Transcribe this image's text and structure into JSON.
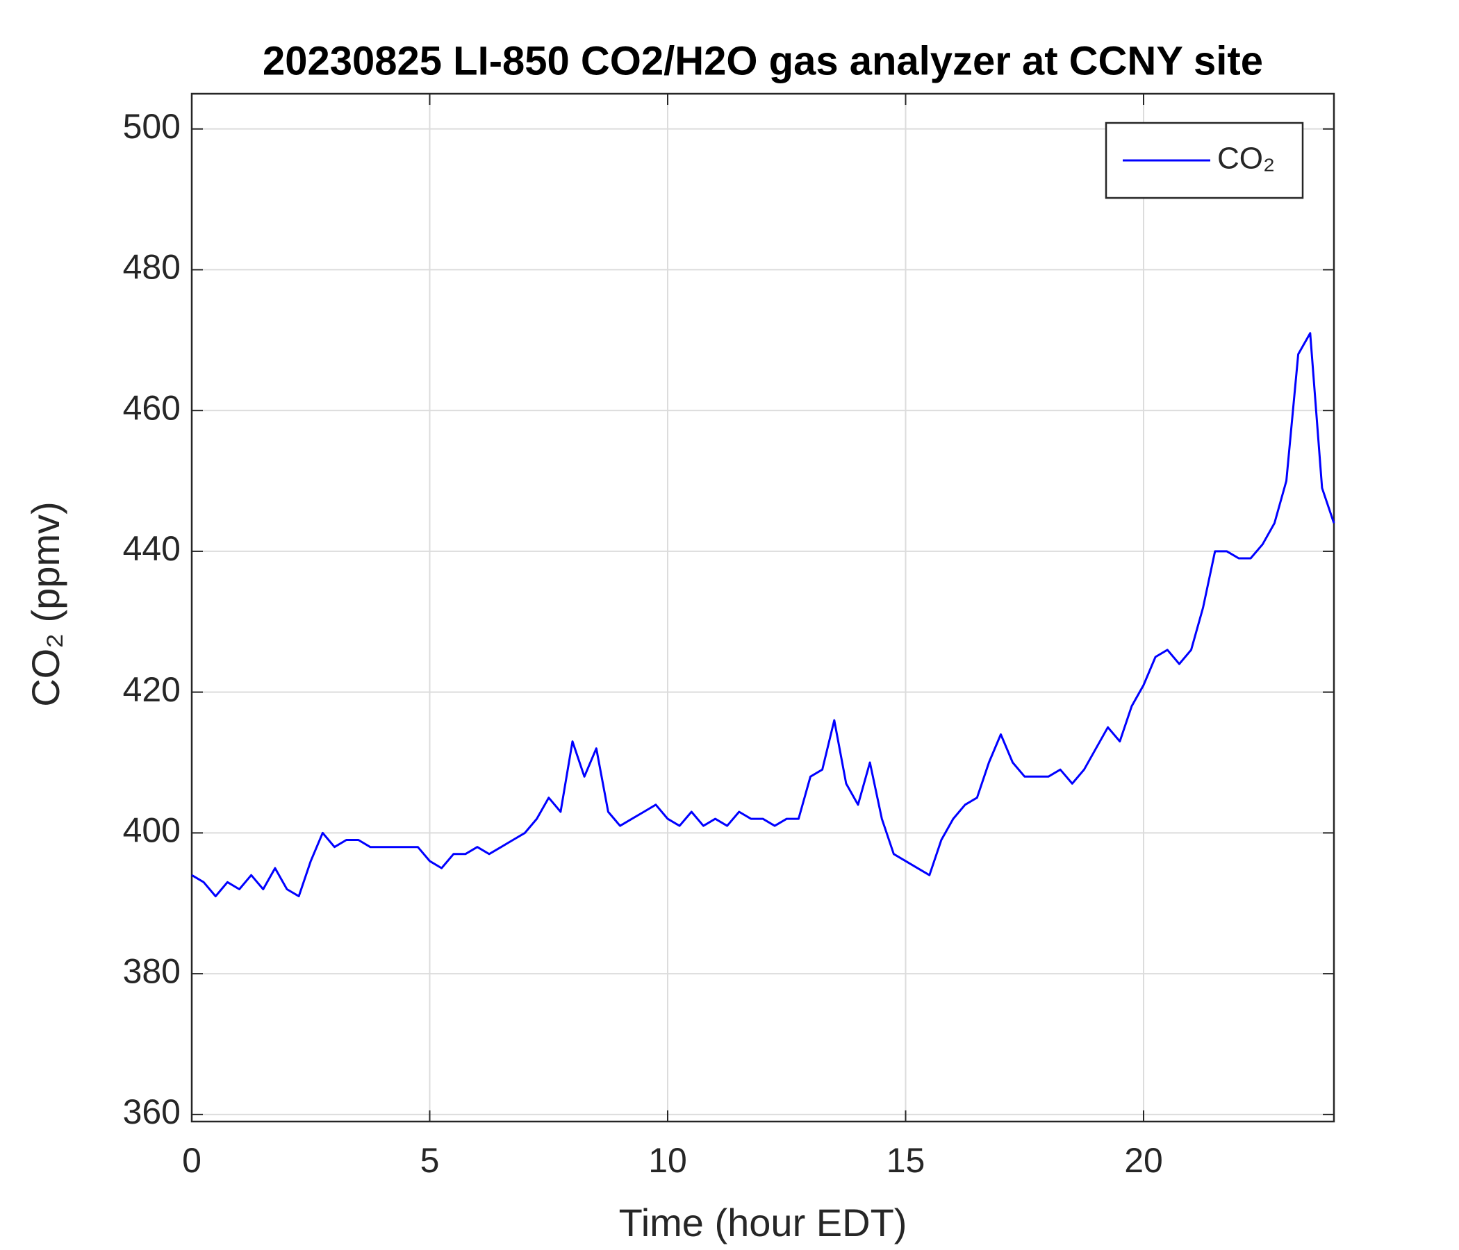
{
  "chart_data": {
    "type": "line",
    "title": "20230825 LI-850 CO2/H2O gas analyzer at CCNY site",
    "xlabel": "Time (hour EDT)",
    "ylabel": "CO₂ (ppmv)",
    "x": [
      0,
      0.25,
      0.5,
      0.75,
      1,
      1.25,
      1.5,
      1.75,
      2,
      2.25,
      2.5,
      2.75,
      3,
      3.25,
      3.5,
      3.75,
      4,
      4.25,
      4.5,
      4.75,
      5,
      5.25,
      5.5,
      5.75,
      6,
      6.25,
      6.5,
      6.75,
      7,
      7.25,
      7.5,
      7.75,
      8,
      8.25,
      8.5,
      8.75,
      9,
      9.25,
      9.5,
      9.75,
      10,
      10.25,
      10.5,
      10.75,
      11,
      11.25,
      11.5,
      11.75,
      12,
      12.25,
      12.5,
      12.75,
      13,
      13.25,
      13.5,
      13.75,
      14,
      14.25,
      14.5,
      14.75,
      15,
      15.25,
      15.5,
      15.75,
      16,
      16.25,
      16.5,
      16.75,
      17,
      17.25,
      17.5,
      17.75,
      18,
      18.25,
      18.5,
      18.75,
      19,
      19.25,
      19.5,
      19.75,
      20,
      20.25,
      20.5,
      20.75,
      21,
      21.25,
      21.5,
      21.75,
      22,
      22.25,
      22.5,
      22.75,
      23,
      23.25,
      23.5,
      23.75,
      24
    ],
    "series": [
      {
        "name": "CO₂",
        "color": "#0000ff",
        "values": [
          394,
          393,
          391,
          393,
          392,
          394,
          392,
          395,
          392,
          391,
          396,
          400,
          398,
          399,
          399,
          398,
          398,
          398,
          398,
          398,
          396,
          395,
          397,
          397,
          398,
          397,
          398,
          399,
          400,
          402,
          405,
          403,
          413,
          408,
          412,
          403,
          401,
          402,
          403,
          404,
          402,
          401,
          403,
          401,
          402,
          401,
          403,
          402,
          402,
          401,
          402,
          402,
          408,
          409,
          416,
          407,
          404,
          410,
          402,
          397,
          396,
          395,
          394,
          399,
          402,
          404,
          405,
          410,
          414,
          410,
          408,
          408,
          408,
          409,
          407,
          409,
          412,
          415,
          413,
          418,
          421,
          425,
          426,
          424,
          426,
          432,
          440,
          440,
          439,
          439,
          441,
          444,
          450,
          468,
          471,
          449,
          444
        ]
      }
    ],
    "xlim": [
      0,
      24
    ],
    "xticks": [
      0,
      5,
      10,
      15,
      20
    ],
    "ylim": [
      359,
      505
    ],
    "yticks": [
      360,
      380,
      400,
      420,
      440,
      460,
      480,
      500
    ],
    "grid": true,
    "legend": "upper right"
  }
}
